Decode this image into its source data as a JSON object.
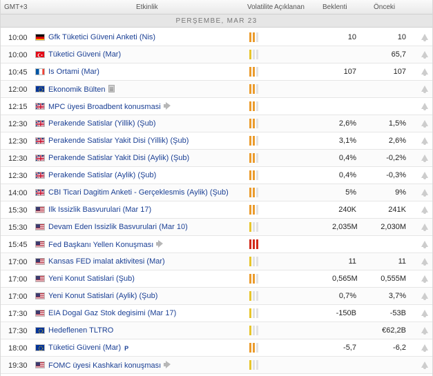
{
  "header": {
    "time_label": "GMT+3",
    "event_label": "Etkinlik",
    "volatility_label": "Volatilite",
    "actual_label": "Açıklanan",
    "forecast_label": "Beklenti",
    "previous_label": "Önceki"
  },
  "day_label": "PERŞEMBE, MAR 23",
  "events": [
    {
      "time": "10:00",
      "country": "de",
      "name": "Gfk Tüketici Güveni Anketi (Nis)",
      "vol": 2,
      "actual": "",
      "forecast": "10",
      "previous": "10",
      "icon": ""
    },
    {
      "time": "10:00",
      "country": "tr",
      "name": "Tüketici Güveni (Mar)",
      "vol": 1,
      "actual": "",
      "forecast": "",
      "previous": "65,7",
      "icon": ""
    },
    {
      "time": "10:45",
      "country": "fr",
      "name": "Is Ortami (Mar)",
      "vol": 2,
      "actual": "",
      "forecast": "107",
      "previous": "107",
      "icon": ""
    },
    {
      "time": "12:00",
      "country": "eu",
      "name": "Ekonomik Bülten",
      "vol": 2,
      "actual": "",
      "forecast": "",
      "previous": "",
      "icon": "doc"
    },
    {
      "time": "12:15",
      "country": "gb",
      "name": "MPC üyesi Broadbent konusmasi",
      "vol": 2,
      "actual": "",
      "forecast": "",
      "previous": "",
      "icon": "speech"
    },
    {
      "time": "12:30",
      "country": "gb",
      "name": "Perakende Satislar (Yillik) (Şub)",
      "vol": 2,
      "actual": "",
      "forecast": "2,6%",
      "previous": "1,5%",
      "icon": ""
    },
    {
      "time": "12:30",
      "country": "gb",
      "name": "Perakende Satislar Yakit Disi (Yillik) (Şub)",
      "vol": 2,
      "actual": "",
      "forecast": "3,1%",
      "previous": "2,6%",
      "icon": ""
    },
    {
      "time": "12:30",
      "country": "gb",
      "name": "Perakende Satislar Yakit Disi (Aylik) (Şub)",
      "vol": 2,
      "actual": "",
      "forecast": "0,4%",
      "previous": "-0,2%",
      "icon": ""
    },
    {
      "time": "12:30",
      "country": "gb",
      "name": "Perakende Satislar (Aylik) (Şub)",
      "vol": 2,
      "actual": "",
      "forecast": "0,4%",
      "previous": "-0,3%",
      "icon": ""
    },
    {
      "time": "14:00",
      "country": "gb",
      "name": "CBI Ticari Dagitim Anketi - Gerçeklesmis (Aylik) (Şub)",
      "vol": 2,
      "actual": "",
      "forecast": "5%",
      "previous": "9%",
      "icon": ""
    },
    {
      "time": "15:30",
      "country": "us",
      "name": "Ilk Issizlik Basvurulari (Mar 17)",
      "vol": 2,
      "actual": "",
      "forecast": "240K",
      "previous": "241K",
      "icon": ""
    },
    {
      "time": "15:30",
      "country": "us",
      "name": "Devam Eden Issizlik Basvurulari (Mar 10)",
      "vol": 1,
      "actual": "",
      "forecast": "2,035M",
      "previous": "2,030M",
      "icon": ""
    },
    {
      "time": "15:45",
      "country": "us",
      "name": "Fed Başkanı Yellen Konuşması",
      "vol": 3,
      "actual": "",
      "forecast": "",
      "previous": "",
      "icon": "speech"
    },
    {
      "time": "17:00",
      "country": "us",
      "name": "Kansas FED imalat aktivitesi (Mar)",
      "vol": 1,
      "actual": "",
      "forecast": "11",
      "previous": "11",
      "icon": ""
    },
    {
      "time": "17:00",
      "country": "us",
      "name": "Yeni Konut Satislari (Şub)",
      "vol": 2,
      "actual": "",
      "forecast": "0,565M",
      "previous": "0,555M",
      "icon": ""
    },
    {
      "time": "17:00",
      "country": "us",
      "name": "Yeni Konut Satislari (Aylik) (Şub)",
      "vol": 1,
      "actual": "",
      "forecast": "0,7%",
      "previous": "3,7%",
      "icon": ""
    },
    {
      "time": "17:30",
      "country": "us",
      "name": "EIA Dogal Gaz Stok degisimi (Mar 17)",
      "vol": 1,
      "actual": "",
      "forecast": "-150B",
      "previous": "-53B",
      "icon": ""
    },
    {
      "time": "17:30",
      "country": "eu",
      "name": "Hedeflenen TLTRO",
      "vol": 1,
      "actual": "",
      "forecast": "",
      "previous": "€62,2B",
      "icon": ""
    },
    {
      "time": "18:00",
      "country": "eu",
      "name": "Tüketici Güveni (Mar)",
      "vol": 2,
      "actual": "",
      "forecast": "-5,7",
      "previous": "-6,2",
      "icon": "p"
    },
    {
      "time": "19:30",
      "country": "us",
      "name": "FOMC üyesi Kashkari konuşması",
      "vol": 1,
      "actual": "",
      "forecast": "",
      "previous": "",
      "icon": "speech"
    }
  ],
  "icons": {
    "preliminary_marker": "P"
  },
  "colors": {
    "link": "#1a3f94",
    "vol_low": "#e7c52b",
    "vol_med": "#eb9b2c",
    "vol_high": "#d22a1a",
    "vol_off": "#e3e3e3"
  }
}
